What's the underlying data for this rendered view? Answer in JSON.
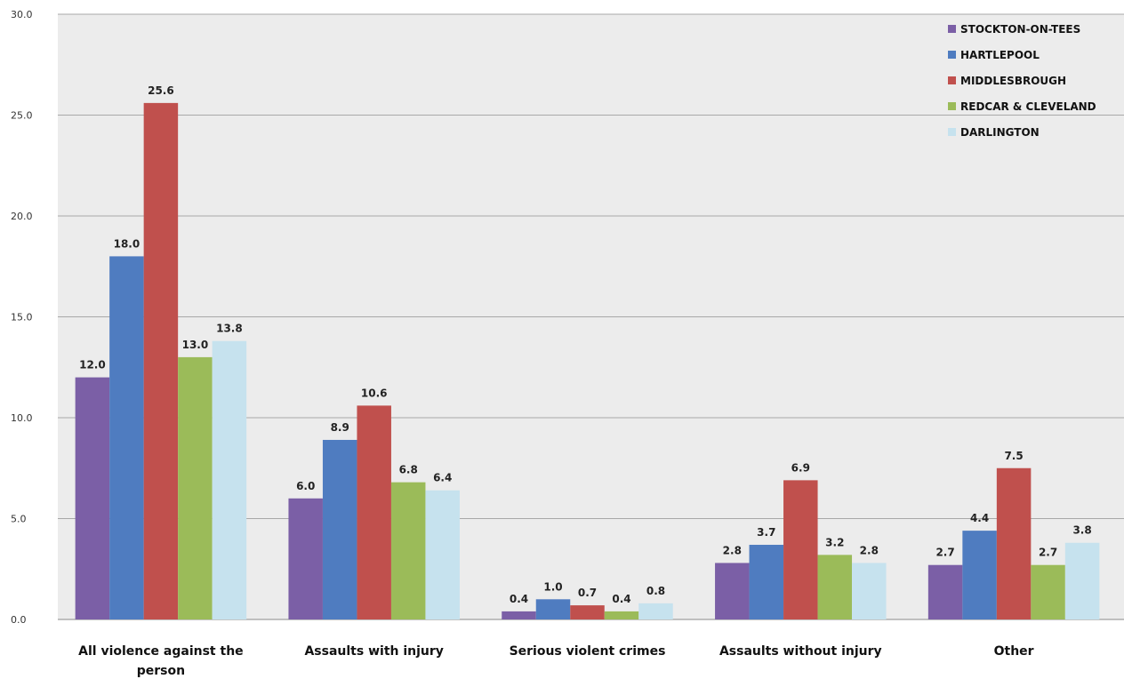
{
  "chart_data": {
    "type": "bar",
    "title": "",
    "xlabel": "",
    "ylabel": "",
    "ylim": [
      0,
      30
    ],
    "yticks": [
      0,
      5,
      10,
      15,
      20,
      25,
      30
    ],
    "grid": true,
    "legend_position": "top-right",
    "categories": [
      [
        "All violence against the",
        "person"
      ],
      [
        "Assaults with injury"
      ],
      [
        "Serious violent crimes"
      ],
      [
        "Assaults without injury"
      ],
      [
        "Other"
      ]
    ],
    "series": [
      {
        "name": "STOCKTON-ON-TEES",
        "color": "#7b5fa6",
        "values": [
          12.0,
          6.0,
          0.4,
          2.8,
          2.7
        ]
      },
      {
        "name": "HARTLEPOOL",
        "color": "#4f7cc0",
        "values": [
          18.0,
          8.9,
          1.0,
          3.7,
          4.4
        ]
      },
      {
        "name": "MIDDLESBROUGH",
        "color": "#c0504d",
        "values": [
          25.6,
          10.6,
          0.7,
          6.9,
          7.5
        ]
      },
      {
        "name": "REDCAR & CLEVELAND",
        "color": "#9bbb59",
        "values": [
          13.0,
          6.8,
          0.4,
          3.2,
          2.7
        ]
      },
      {
        "name": "DARLINGTON",
        "color": "#c6e2ee",
        "values": [
          13.8,
          6.4,
          0.8,
          2.8,
          3.8
        ]
      }
    ]
  }
}
